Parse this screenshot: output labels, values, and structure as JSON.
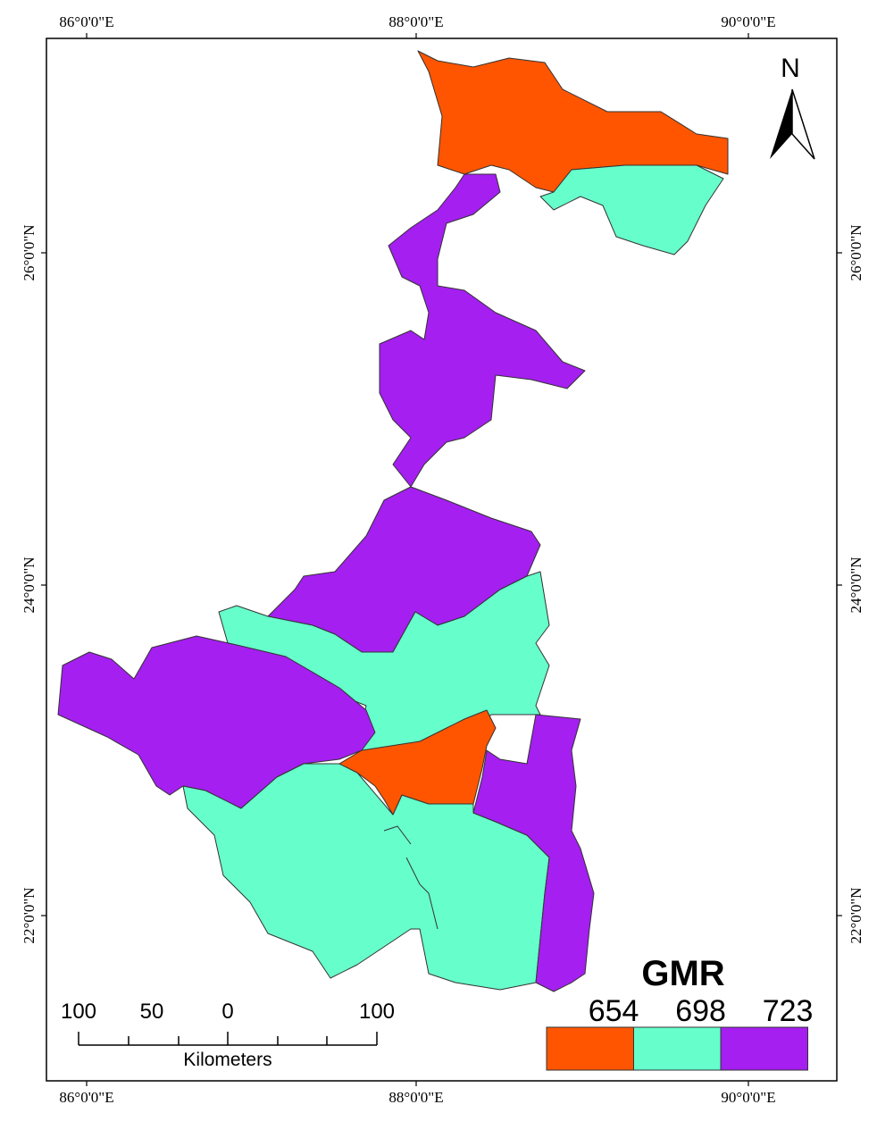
{
  "graticule": {
    "longitude_labels": [
      "86°0'0\"E",
      "88°0'0\"E",
      "90°0'0\"E"
    ],
    "latitude_labels": [
      "26°0'0\"N",
      "24°0'0\"N",
      "22°0'0\"N"
    ]
  },
  "north_arrow": "N",
  "legend": {
    "title": "GMR",
    "classes": [
      {
        "label": 654,
        "color": "#ff5500"
      },
      {
        "label": 698,
        "color": "#66ffcc"
      },
      {
        "label": 723,
        "color": "#a41ff0"
      }
    ]
  },
  "scale_bar": {
    "labels": [
      100,
      50,
      0,
      100
    ],
    "unit": "Kilometers"
  }
}
